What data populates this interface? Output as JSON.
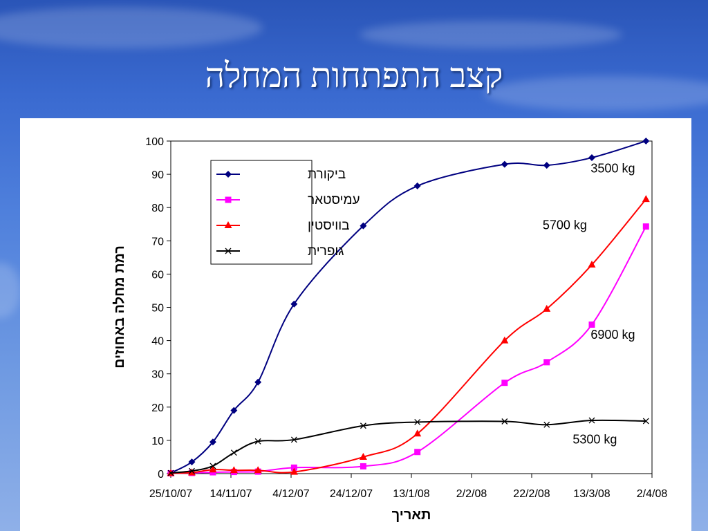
{
  "slide": {
    "title": "קצב התפתחות המחלה"
  },
  "colors": {
    "series": [
      "#000080",
      "#ff00ff",
      "#ff0000",
      "#000000"
    ]
  },
  "chart_data": {
    "type": "line",
    "title": "",
    "xlabel": "תאריך",
    "ylabel": "רמת מחלה באחוזים",
    "ylim": [
      0,
      100
    ],
    "yticks": [
      0,
      10,
      20,
      30,
      40,
      50,
      60,
      70,
      80,
      90,
      100
    ],
    "xlim": [
      "2007-10-25",
      "2008-04-02"
    ],
    "xtick_labels": [
      "25/10/07",
      "14/11/07",
      "4/12/07",
      "24/12/07",
      "13/1/08",
      "2/2/08",
      "22/2/08",
      "13/3/08",
      "2/4/08"
    ],
    "xtick_dates": [
      "2007-10-25",
      "2007-11-14",
      "2007-12-04",
      "2007-12-24",
      "2008-01-13",
      "2008-02-02",
      "2008-02-22",
      "2008-03-13",
      "2008-04-02"
    ],
    "grid": false,
    "legend": "top-left",
    "series": [
      {
        "name": "ביקורת",
        "marker": "diamond",
        "points": [
          [
            "2007-10-25",
            0.2
          ],
          [
            "2007-11-01",
            3.5
          ],
          [
            "2007-11-08",
            9.5
          ],
          [
            "2007-11-15",
            19
          ],
          [
            "2007-11-23",
            27.5
          ],
          [
            "2007-12-05",
            51
          ],
          [
            "2007-12-28",
            74.5
          ],
          [
            "2008-01-15",
            86.5
          ],
          [
            "2008-02-13",
            93
          ],
          [
            "2008-02-27",
            92.7
          ],
          [
            "2008-03-13",
            95
          ],
          [
            "2008-03-31",
            100
          ]
        ]
      },
      {
        "name": "עמיסטאר",
        "marker": "square",
        "points": [
          [
            "2007-10-25",
            0.1
          ],
          [
            "2007-11-01",
            0.2
          ],
          [
            "2007-11-08",
            0.4
          ],
          [
            "2007-11-15",
            0.5
          ],
          [
            "2007-11-23",
            0.6
          ],
          [
            "2007-12-05",
            1.8
          ],
          [
            "2007-12-28",
            2.2
          ],
          [
            "2008-01-15",
            6.5
          ],
          [
            "2008-02-13",
            27.3
          ],
          [
            "2008-02-27",
            33.5
          ],
          [
            "2008-03-13",
            44.8
          ],
          [
            "2008-03-31",
            74.3
          ]
        ]
      },
      {
        "name": "בוויסטין",
        "marker": "triangle",
        "points": [
          [
            "2007-10-25",
            0.1
          ],
          [
            "2007-11-01",
            0.3
          ],
          [
            "2007-11-08",
            1.2
          ],
          [
            "2007-11-15",
            1
          ],
          [
            "2007-11-23",
            1
          ],
          [
            "2007-12-05",
            0.5
          ],
          [
            "2007-12-28",
            5
          ],
          [
            "2008-01-15",
            12
          ],
          [
            "2008-02-13",
            40
          ],
          [
            "2008-02-27",
            49.5
          ],
          [
            "2008-03-13",
            62.8
          ],
          [
            "2008-03-31",
            82.5
          ]
        ]
      },
      {
        "name": "גופרית",
        "marker": "x",
        "points": [
          [
            "2007-10-25",
            0.2
          ],
          [
            "2007-11-01",
            0.8
          ],
          [
            "2007-11-08",
            2.3
          ],
          [
            "2007-11-15",
            6.3
          ],
          [
            "2007-11-23",
            9.7
          ],
          [
            "2007-12-05",
            10.2
          ],
          [
            "2007-12-28",
            14.4
          ],
          [
            "2008-01-15",
            15.5
          ],
          [
            "2008-02-13",
            15.7
          ],
          [
            "2008-02-27",
            14.7
          ],
          [
            "2008-03-13",
            16
          ],
          [
            "2008-03-31",
            15.8
          ]
        ]
      }
    ],
    "annotations": [
      {
        "text": "3500 kg",
        "x": "2008-03-20",
        "y": 90.5
      },
      {
        "text": "5700 kg",
        "x": "2008-03-04",
        "y": 73.5
      },
      {
        "text": "6900 kg",
        "x": "2008-03-20",
        "y": 40.5
      },
      {
        "text": "5300 kg",
        "x": "2008-03-14",
        "y": 9
      }
    ]
  }
}
